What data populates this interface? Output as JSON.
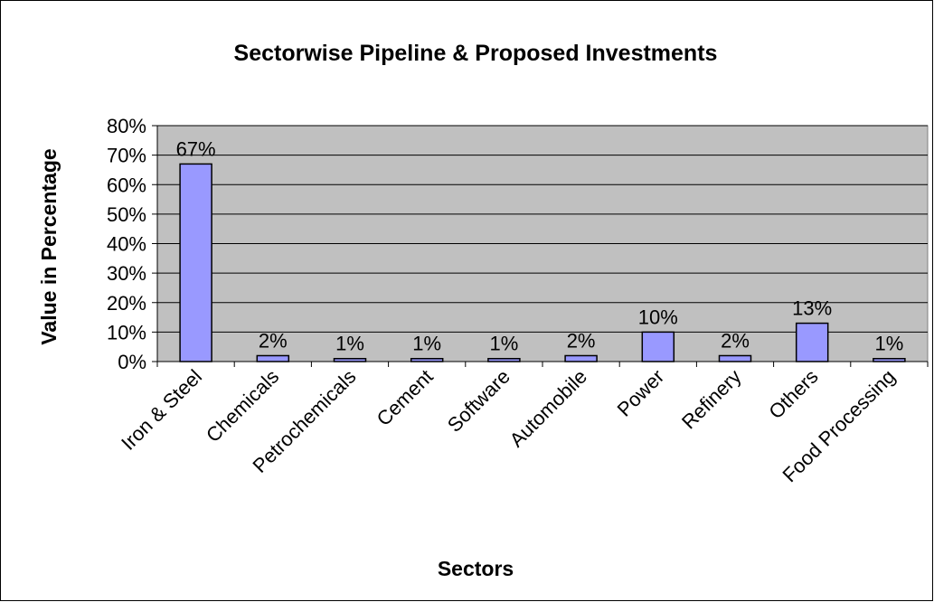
{
  "chart_data": {
    "type": "bar",
    "title": "Sectorwise Pipeline & Proposed Investments",
    "xlabel": "Sectors",
    "ylabel": "Value in Percentage",
    "categories": [
      "Iron & Steel",
      "Chemicals",
      "Petrochemicals",
      "Cement",
      "Software",
      "Automobile",
      "Power",
      "Refinery",
      "Others",
      "Food Processing"
    ],
    "values": [
      67,
      2,
      1,
      1,
      1,
      2,
      10,
      2,
      13,
      1
    ],
    "data_labels": [
      "67%",
      "2%",
      "1%",
      "1%",
      "1%",
      "2%",
      "10%",
      "2%",
      "13%",
      "1%"
    ],
    "ylim": [
      0,
      80
    ],
    "yticks": [
      0,
      10,
      20,
      30,
      40,
      50,
      60,
      70,
      80
    ],
    "ytick_labels": [
      "0%",
      "10%",
      "20%",
      "30%",
      "40%",
      "50%",
      "60%",
      "70%",
      "80%"
    ],
    "grid": true,
    "legend": "none",
    "colors": {
      "bar_fill": "#9999ff",
      "plot_background": "#c0c0c0",
      "gridline": "#000000"
    }
  }
}
